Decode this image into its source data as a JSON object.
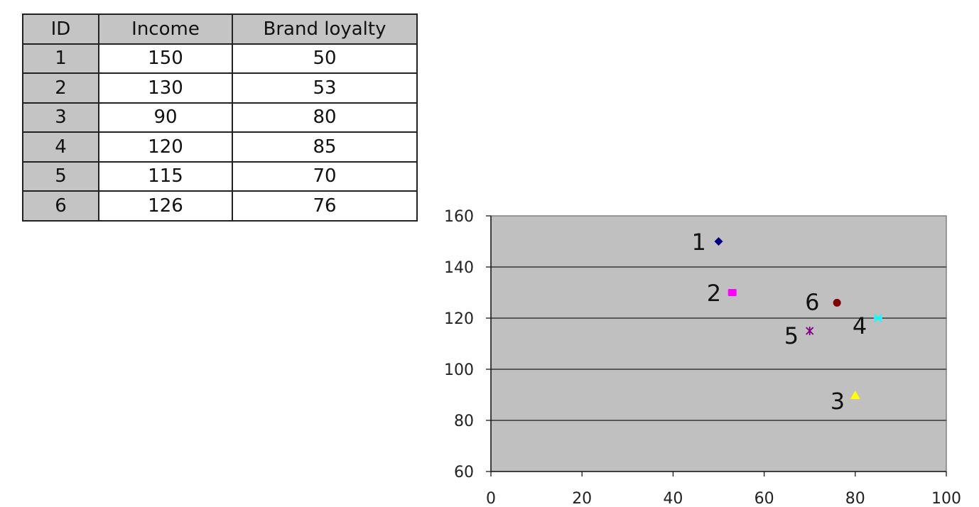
{
  "table": {
    "headers": [
      "ID",
      "Income",
      "Brand loyalty"
    ],
    "rows": [
      [
        "1",
        "150",
        "50"
      ],
      [
        "2",
        "130",
        "53"
      ],
      [
        "3",
        "90",
        "80"
      ],
      [
        "4",
        "120",
        "85"
      ],
      [
        "5",
        "115",
        "70"
      ],
      [
        "6",
        "126",
        "76"
      ]
    ]
  },
  "chart_data": {
    "type": "scatter",
    "title": "",
    "xlabel": "",
    "ylabel": "",
    "xlim": [
      0,
      100
    ],
    "ylim": [
      60,
      160
    ],
    "x_ticks": [
      "0",
      "20",
      "40",
      "60",
      "80",
      "100"
    ],
    "y_ticks": [
      "60",
      "80",
      "100",
      "120",
      "140",
      "160"
    ],
    "grid": "horizontal",
    "plot_background": "#c0c0c0",
    "points": [
      {
        "label": "1",
        "x": 50,
        "y": 150,
        "marker": "diamond",
        "color": "#000080"
      },
      {
        "label": "2",
        "x": 53,
        "y": 130,
        "marker": "square",
        "color": "#ff00ff"
      },
      {
        "label": "3",
        "x": 80,
        "y": 90,
        "marker": "triangle",
        "color": "#ffff00"
      },
      {
        "label": "4",
        "x": 85,
        "y": 120,
        "marker": "x",
        "color": "#00ffff"
      },
      {
        "label": "5",
        "x": 70,
        "y": 115,
        "marker": "star",
        "color": "#800080"
      },
      {
        "label": "6",
        "x": 76,
        "y": 126,
        "marker": "circle",
        "color": "#800000"
      }
    ]
  }
}
